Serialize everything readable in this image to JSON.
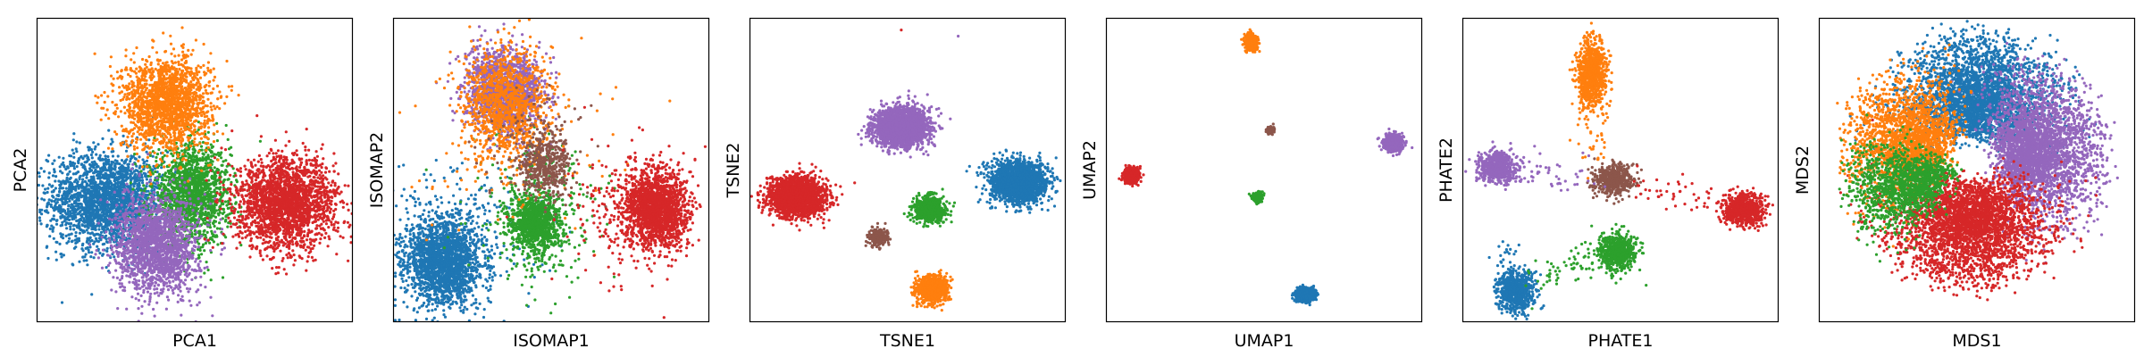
{
  "colors": {
    "blue": "#1f77b4",
    "orange": "#ff7f0e",
    "green": "#2ca02c",
    "red": "#d62728",
    "purple": "#9467bd",
    "brown": "#8c564b"
  },
  "chart_data": [
    {
      "type": "scatter",
      "xlabel": "PCA1",
      "ylabel": "PCA2",
      "xlim": [
        0,
        100
      ],
      "ylim": [
        0,
        100
      ],
      "ticks": "hidden",
      "legend": "none",
      "clusters": [
        {
          "color": "blue",
          "cx": 22,
          "cy": 40,
          "sx": 9,
          "sy": 8,
          "n": 2200
        },
        {
          "color": "green",
          "cx": 49,
          "cy": 42,
          "sx": 6,
          "sy": 8,
          "n": 1600
        },
        {
          "color": "orange",
          "cx": 41,
          "cy": 72,
          "sx": 7,
          "sy": 7.5,
          "n": 1800
        },
        {
          "color": "purple",
          "cx": 38,
          "cy": 25,
          "sx": 6.5,
          "sy": 8,
          "n": 1800
        },
        {
          "color": "red",
          "cx": 79,
          "cy": 39,
          "sx": 8,
          "sy": 7.5,
          "n": 2200
        }
      ]
    },
    {
      "type": "scatter",
      "xlabel": "ISOMAP1",
      "ylabel": "ISOMAP2",
      "xlim": [
        0,
        100
      ],
      "ylim": [
        0,
        100
      ],
      "ticks": "hidden",
      "legend": "none",
      "clusters": [
        {
          "color": "blue",
          "cx": 16,
          "cy": 20,
          "sx": 6,
          "sy": 7,
          "n": 2000
        },
        {
          "color": "blue",
          "cx": 20,
          "cy": 30,
          "sx": 15,
          "sy": 12,
          "n": 250
        },
        {
          "color": "green",
          "cx": 45,
          "cy": 32,
          "sx": 4,
          "sy": 5,
          "n": 1000
        },
        {
          "color": "green",
          "cx": 46,
          "cy": 36,
          "sx": 10,
          "sy": 14,
          "n": 300
        },
        {
          "color": "purple",
          "cx": 35,
          "cy": 76,
          "sx": 6,
          "sy": 6.5,
          "n": 1500
        },
        {
          "color": "orange",
          "cx": 36,
          "cy": 72,
          "sx": 7,
          "sy": 9,
          "n": 1000
        },
        {
          "color": "orange",
          "cx": 36,
          "cy": 60,
          "sx": 15,
          "sy": 15,
          "n": 150
        },
        {
          "color": "brown",
          "cx": 48,
          "cy": 52,
          "sx": 4,
          "sy": 5,
          "n": 450
        },
        {
          "color": "brown",
          "cx": 44,
          "cy": 57,
          "sx": 8,
          "sy": 10,
          "n": 120
        },
        {
          "color": "red",
          "cx": 83,
          "cy": 37,
          "sx": 5,
          "sy": 6.5,
          "n": 1700
        },
        {
          "color": "red",
          "cx": 73,
          "cy": 38,
          "sx": 9,
          "sy": 11,
          "n": 250
        }
      ]
    },
    {
      "type": "scatter",
      "xlabel": "TSNE1",
      "ylabel": "TSNE2",
      "xlim": [
        0,
        100
      ],
      "ylim": [
        0,
        100
      ],
      "ticks": "hidden",
      "legend": "none",
      "clusters": [
        {
          "color": "purple",
          "cx": 48,
          "cy": 64,
          "sx": 4.2,
          "sy": 3.2,
          "n": 2200
        },
        {
          "color": "blue",
          "cx": 85,
          "cy": 46,
          "sx": 4.2,
          "sy": 3.2,
          "n": 2200
        },
        {
          "color": "red",
          "cx": 15,
          "cy": 41,
          "sx": 4.2,
          "sy": 3.1,
          "n": 2200
        },
        {
          "color": "green",
          "cx": 57,
          "cy": 37,
          "sx": 2.4,
          "sy": 2.2,
          "n": 700
        },
        {
          "color": "brown",
          "cx": 41,
          "cy": 28,
          "sx": 1.6,
          "sy": 1.4,
          "n": 250
        },
        {
          "color": "orange",
          "cx": 58,
          "cy": 11,
          "sx": 2.5,
          "sy": 2.3,
          "n": 800
        }
      ],
      "outliers": [
        {
          "color": "red",
          "x": 48,
          "y": 96
        },
        {
          "color": "purple",
          "x": 66,
          "y": 94
        }
      ]
    },
    {
      "type": "scatter",
      "xlabel": "UMAP1",
      "ylabel": "UMAP2",
      "xlim": [
        0,
        100
      ],
      "ylim": [
        0,
        100
      ],
      "ticks": "hidden",
      "legend": "none",
      "clusters": [
        {
          "color": "orange",
          "cx": 46,
          "cy": 92,
          "sx": 0.9,
          "sy": 1.3,
          "n": 500
        },
        {
          "color": "purple",
          "cx": 91,
          "cy": 59,
          "sx": 1.4,
          "sy": 1.3,
          "n": 700
        },
        {
          "color": "red",
          "cx": 8,
          "cy": 48,
          "sx": 1.2,
          "sy": 1.2,
          "n": 600
        },
        {
          "color": "brown",
          "cx": 52,
          "cy": 63,
          "sx": 0.6,
          "sy": 0.6,
          "n": 120
        },
        {
          "color": "green",
          "cx": 48,
          "cy": 41,
          "sx": 0.8,
          "sy": 0.8,
          "n": 250
        },
        {
          "color": "blue",
          "cx": 63,
          "cy": 9,
          "sx": 1.4,
          "sy": 1.1,
          "n": 700
        }
      ]
    },
    {
      "type": "scatter",
      "xlabel": "PHATE1",
      "ylabel": "PHATE2",
      "xlim": [
        0,
        100
      ],
      "ylim": [
        0,
        100
      ],
      "ticks": "hidden",
      "legend": "none",
      "clusters": [
        {
          "color": "orange",
          "cx": 41,
          "cy": 82,
          "sx": 2.2,
          "sy": 5,
          "n": 900
        },
        {
          "color": "purple",
          "cx": 11,
          "cy": 51,
          "sx": 3,
          "sy": 2.5,
          "n": 600
        },
        {
          "color": "brown",
          "cx": 48,
          "cy": 47,
          "sx": 3,
          "sy": 2.5,
          "n": 500
        },
        {
          "color": "red",
          "cx": 89,
          "cy": 37,
          "sx": 3.2,
          "sy": 2.5,
          "n": 700
        },
        {
          "color": "green",
          "cx": 49,
          "cy": 23,
          "sx": 3,
          "sy": 3,
          "n": 600
        },
        {
          "color": "blue",
          "cx": 17,
          "cy": 10,
          "sx": 2.8,
          "sy": 3.2,
          "n": 700
        }
      ],
      "trails": [
        {
          "color": "orange",
          "x1": 41,
          "y1": 82,
          "x2": 42,
          "y2": 50,
          "n": 60
        },
        {
          "color": "purple",
          "x1": 11,
          "y1": 51,
          "x2": 40,
          "y2": 46,
          "n": 60
        },
        {
          "color": "red",
          "x1": 89,
          "y1": 37,
          "x2": 55,
          "y2": 45,
          "n": 60
        },
        {
          "color": "green",
          "x1": 49,
          "y1": 23,
          "x2": 22,
          "y2": 14,
          "n": 70
        },
        {
          "color": "blue",
          "x1": 17,
          "y1": 10,
          "x2": 14,
          "y2": 28,
          "n": 30
        }
      ]
    },
    {
      "type": "scatter",
      "xlabel": "MDS1",
      "ylabel": "MDS2",
      "xlim": [
        0,
        100
      ],
      "ylim": [
        0,
        100
      ],
      "ticks": "hidden",
      "legend": "none",
      "disc": {
        "cx": 49,
        "cy": 53,
        "rx": 43,
        "ry": 43,
        "sectors": [
          {
            "color": "blue",
            "angle": 85,
            "spread": 50,
            "n": 3000
          },
          {
            "color": "purple",
            "angle": 8,
            "spread": 48,
            "n": 3000
          },
          {
            "color": "red",
            "angle": -95,
            "spread": 55,
            "n": 3200
          },
          {
            "color": "orange",
            "angle": 160,
            "spread": 40,
            "n": 2000
          },
          {
            "color": "green",
            "angle": -160,
            "spread": 25,
            "n": 1400
          }
        ]
      }
    }
  ]
}
